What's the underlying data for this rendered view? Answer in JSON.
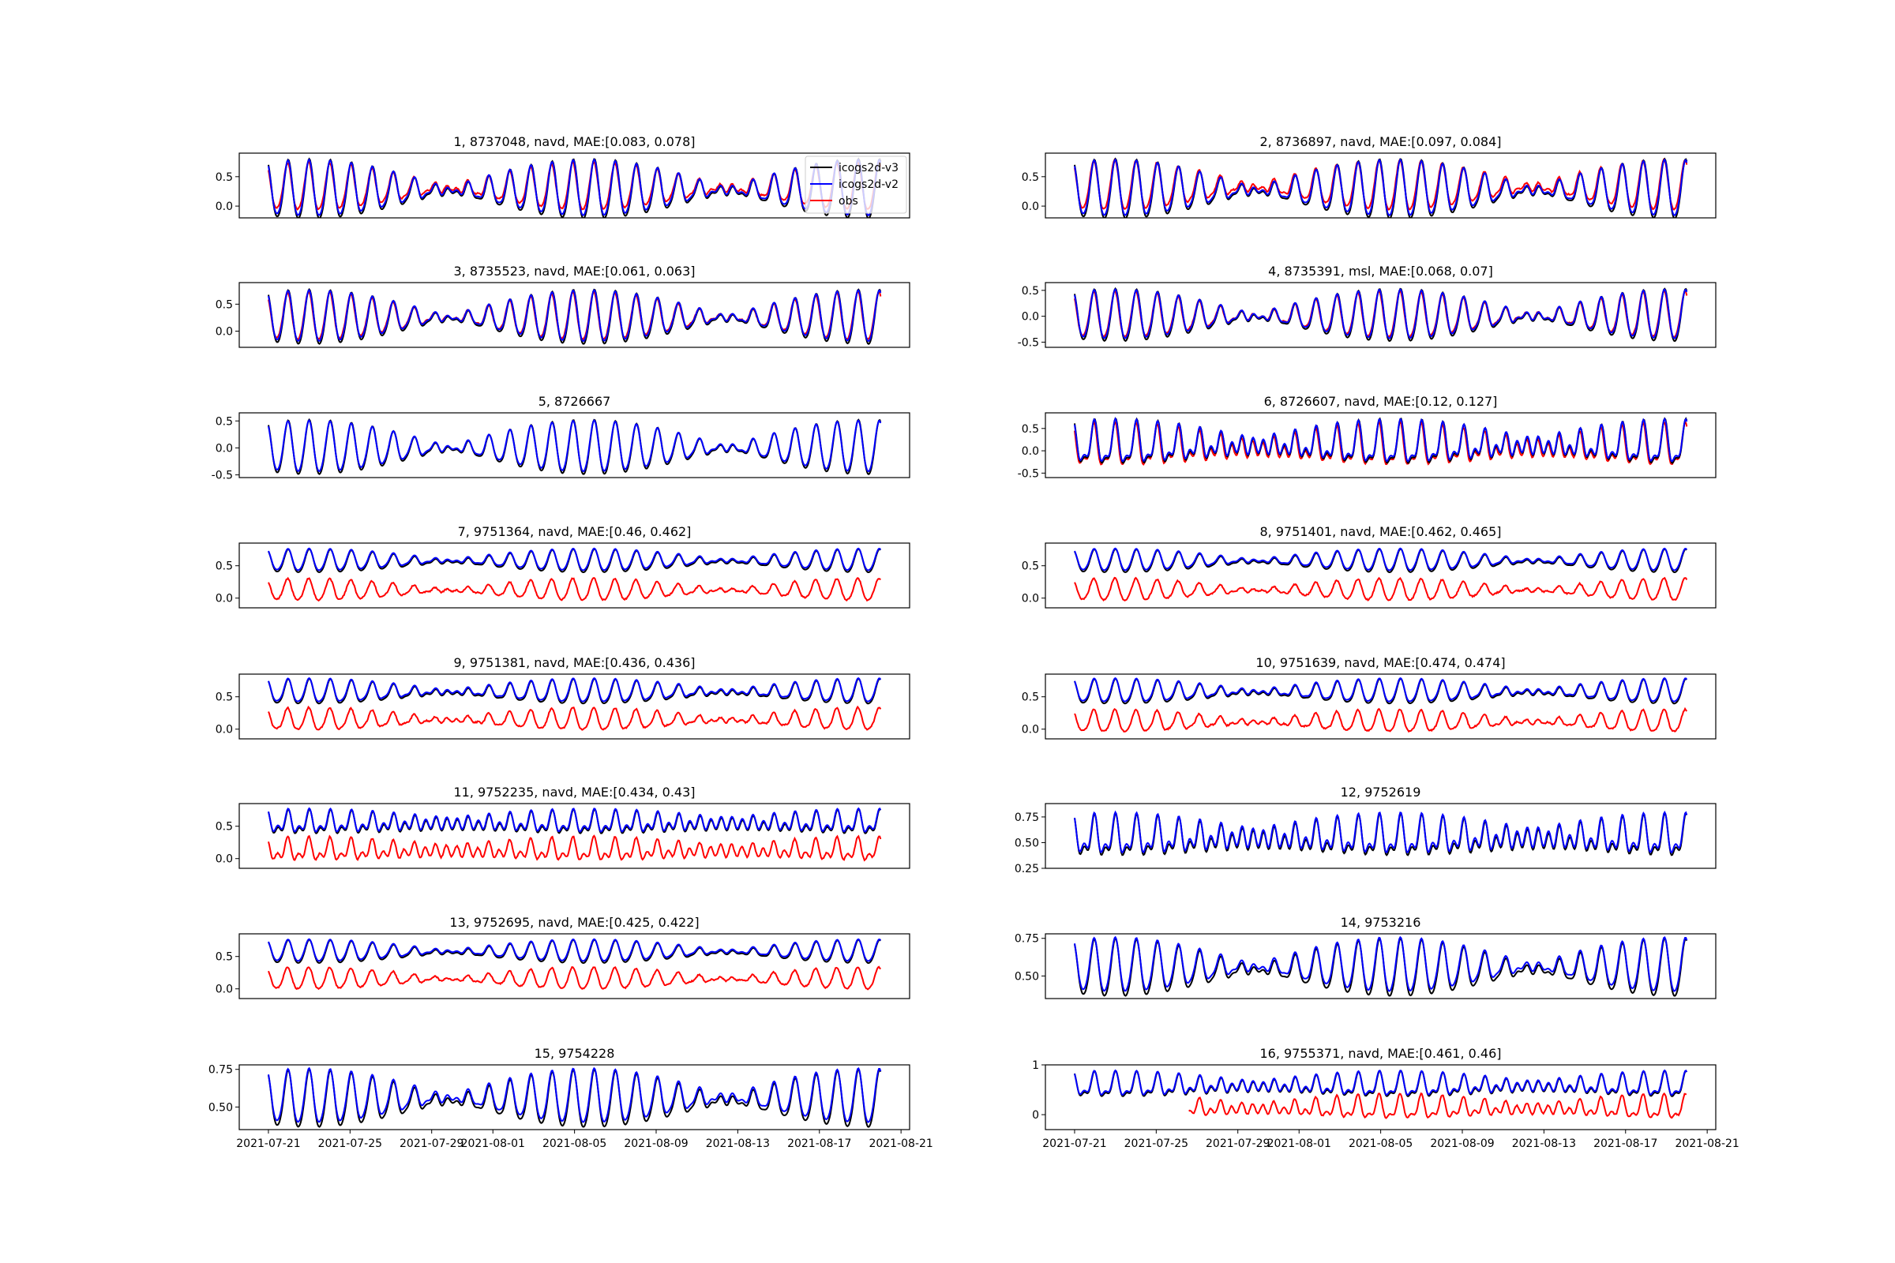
{
  "chart_data": {
    "type": "line",
    "x_start": "2021-07-21",
    "x_end": "2021-08-20",
    "xlim_days_from_start": [
      -1.43,
      31.42
    ],
    "xticks": [
      "2021-07-21",
      "2021-07-25",
      "2021-07-29",
      "2021-08-01",
      "2021-08-05",
      "2021-08-09",
      "2021-08-13",
      "2021-08-17",
      "2021-08-21"
    ],
    "xtick_days": [
      0,
      4,
      8,
      11,
      15,
      19,
      23,
      27,
      31
    ],
    "legend": {
      "placement": "upper-right",
      "entries": [
        {
          "name": "icogs2d-v3",
          "color": "#000000"
        },
        {
          "name": "icogs2d-v2",
          "color": "#0000ff"
        },
        {
          "name": "obs",
          "color": "#ff0000"
        }
      ]
    },
    "subplots": [
      {
        "title": "1, 8737048, navd, MAE:[0.083, 0.078]",
        "ylim": [
          -0.2,
          0.9
        ],
        "yticks": [
          "0.0",
          "0.5"
        ],
        "ytick_vals": [
          0,
          0.5
        ],
        "model_mean": 0.27,
        "model_amp": 0.45,
        "obs_mean": 0.3,
        "obs_amp": 0.38,
        "semi": 0.05,
        "has_obs": true,
        "legend": true
      },
      {
        "title": "2, 8736897, navd, MAE:[0.097, 0.084]",
        "ylim": [
          -0.2,
          0.9
        ],
        "yticks": [
          "0.0",
          "0.5"
        ],
        "ytick_vals": [
          0,
          0.5
        ],
        "model_mean": 0.27,
        "model_amp": 0.45,
        "obs_mean": 0.32,
        "obs_amp": 0.4,
        "semi": 0.05,
        "has_obs": true
      },
      {
        "title": "3, 8735523, navd, MAE:[0.061, 0.063]",
        "ylim": [
          -0.3,
          0.9
        ],
        "yticks": [
          "0.0",
          "0.5"
        ],
        "ytick_vals": [
          0,
          0.5
        ],
        "model_mean": 0.25,
        "model_amp": 0.45,
        "obs_mean": 0.25,
        "obs_amp": 0.42,
        "semi": 0.04,
        "has_obs": true
      },
      {
        "title": "4, 8735391, msl, MAE:[0.068, 0.07]",
        "ylim": [
          -0.6,
          0.65
        ],
        "yticks": [
          "-0.5",
          "0.0",
          "0.5"
        ],
        "ytick_vals": [
          -0.5,
          0,
          0.5
        ],
        "model_mean": 0.0,
        "model_amp": 0.45,
        "obs_mean": 0.0,
        "obs_amp": 0.42,
        "semi": 0.05,
        "has_obs": true
      },
      {
        "title": "5, 8726667",
        "ylim": [
          -0.55,
          0.65
        ],
        "yticks": [
          "-0.5",
          "0.0",
          "0.5"
        ],
        "ytick_vals": [
          -0.5,
          0,
          0.5
        ],
        "model_mean": 0.0,
        "model_amp": 0.45,
        "semi": 0.04,
        "has_obs": false
      },
      {
        "title": "6, 8726607, navd, MAE:[0.12, 0.127]",
        "ylim": [
          -0.6,
          0.85
        ],
        "yticks": [
          "-0.5",
          "0.0",
          "0.5"
        ],
        "ytick_vals": [
          -0.5,
          0,
          0.5
        ],
        "model_mean": 0.12,
        "model_amp": 0.4,
        "obs_mean": 0.05,
        "obs_amp": 0.4,
        "semi": 0.18,
        "has_obs": true
      },
      {
        "title": "7, 9751364, navd, MAE:[0.46, 0.462]",
        "ylim": [
          -0.15,
          0.85
        ],
        "yticks": [
          "0.0",
          "0.5"
        ],
        "ytick_vals": [
          0,
          0.5
        ],
        "model_mean": 0.58,
        "model_amp": 0.16,
        "obs_mean": 0.12,
        "obs_amp": 0.16,
        "semi": 0.02,
        "has_obs": true
      },
      {
        "title": "8, 9751401, navd, MAE:[0.462, 0.465]",
        "ylim": [
          -0.15,
          0.85
        ],
        "yticks": [
          "0.0",
          "0.5"
        ],
        "ytick_vals": [
          0,
          0.5
        ],
        "model_mean": 0.58,
        "model_amp": 0.16,
        "obs_mean": 0.12,
        "obs_amp": 0.16,
        "semi": 0.02,
        "has_obs": true
      },
      {
        "title": "9, 9751381, navd, MAE:[0.436, 0.436]",
        "ylim": [
          -0.15,
          0.85
        ],
        "yticks": [
          "0.0",
          "0.5"
        ],
        "ytick_vals": [
          0,
          0.5
        ],
        "model_mean": 0.58,
        "model_amp": 0.17,
        "obs_mean": 0.14,
        "obs_amp": 0.16,
        "semi": 0.03,
        "has_obs": true
      },
      {
        "title": "10, 9751639, navd, MAE:[0.474, 0.474]",
        "ylim": [
          -0.15,
          0.85
        ],
        "yticks": [
          "0.0",
          "0.5"
        ],
        "ytick_vals": [
          0,
          0.5
        ],
        "model_mean": 0.58,
        "model_amp": 0.17,
        "obs_mean": 0.11,
        "obs_amp": 0.16,
        "semi": 0.03,
        "has_obs": true
      },
      {
        "title": "11, 9752235, navd, MAE:[0.434, 0.43]",
        "ylim": [
          -0.15,
          0.85
        ],
        "yticks": [
          "0.0",
          "0.5"
        ],
        "ytick_vals": [
          0,
          0.5
        ],
        "model_mean": 0.55,
        "model_amp": 0.13,
        "obs_mean": 0.12,
        "obs_amp": 0.13,
        "semi": 0.09,
        "has_obs": true
      },
      {
        "title": "12, 9752619",
        "ylim": [
          0.25,
          0.88
        ],
        "yticks": [
          "0.25",
          "0.50",
          "0.75"
        ],
        "ytick_vals": [
          0.25,
          0.5,
          0.75
        ],
        "model_mean": 0.55,
        "model_amp": 0.15,
        "semi": 0.09,
        "has_obs": false
      },
      {
        "title": "13, 9752695, navd, MAE:[0.425, 0.422]",
        "ylim": [
          -0.15,
          0.85
        ],
        "yticks": [
          "0.0",
          "0.5"
        ],
        "ytick_vals": [
          0,
          0.5
        ],
        "model_mean": 0.58,
        "model_amp": 0.16,
        "obs_mean": 0.15,
        "obs_amp": 0.16,
        "semi": 0.02,
        "has_obs": true
      },
      {
        "title": "14, 9753216",
        "ylim": [
          0.35,
          0.78
        ],
        "yticks": [
          "0.50",
          "0.75"
        ],
        "ytick_vals": [
          0.5,
          0.75
        ],
        "model_mean": 0.56,
        "model_amp": 0.17,
        "semi": 0.02,
        "has_obs": false
      },
      {
        "title": "15, 9754228",
        "ylim": [
          0.35,
          0.78
        ],
        "yticks": [
          "0.50",
          "0.75"
        ],
        "ytick_vals": [
          0.5,
          0.75
        ],
        "model_mean": 0.56,
        "model_amp": 0.17,
        "semi": 0.02,
        "has_obs": false
      },
      {
        "title": "16, 9755371, navd, MAE:[0.461, 0.46]",
        "ylim": [
          -0.3,
          1.0
        ],
        "yticks": [
          "0",
          "1"
        ],
        "ytick_vals": [
          0,
          1
        ],
        "model_mean": 0.58,
        "model_amp": 0.2,
        "obs_mean": 0.12,
        "obs_amp": 0.2,
        "semi": 0.1,
        "has_obs": true,
        "obs_start_day": 5.6
      }
    ]
  }
}
